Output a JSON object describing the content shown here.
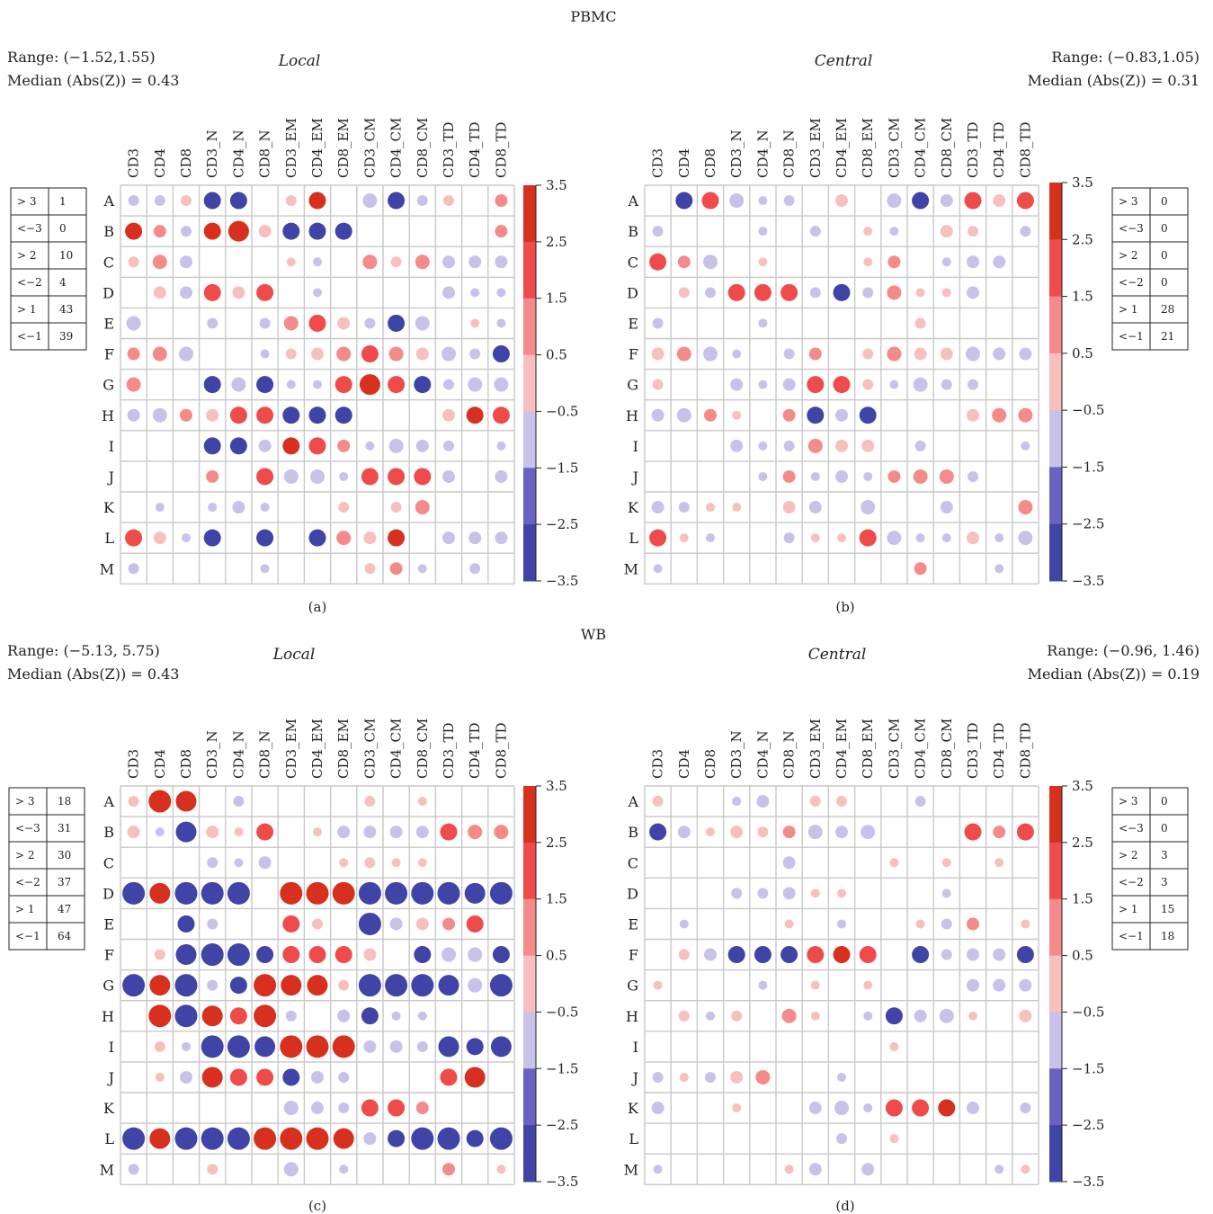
{
  "section_titles": {
    "top": "PBMC",
    "bottom": "WB"
  },
  "colorbar": {
    "ticks": [
      "3.5",
      "2.5",
      "1.5",
      "0.5",
      "−0.5",
      "−1.5",
      "−2.5",
      "−3.5"
    ],
    "tick_values": [
      3.5,
      2.5,
      1.5,
      0.5,
      -0.5,
      -1.5,
      -2.5,
      -3.5
    ],
    "bin_colors": [
      "#d7301f",
      "#ef4b4b",
      "#f48a8a",
      "#f8bfbf",
      "#ffffff",
      "#c6c2ea",
      "#6a62c0",
      "#3f44a6"
    ]
  },
  "colors": {
    "grid": "#c8c8c8",
    "pos_strong": "#d7301f",
    "neg_strong": "#3f44a6"
  },
  "legend_keys": [
    "> 3",
    "<−3",
    "> 2",
    "<−2",
    "> 1",
    "<−1"
  ],
  "chart_data": [
    {
      "type": "heatmap",
      "panel_label": "(a)",
      "title": "Local",
      "stats": {
        "range_text": "Range: (−1.52,1.55)",
        "median_text": "Median (Abs(Z)) = 0.43"
      },
      "counts": [
        "1",
        "0",
        "10",
        "4",
        "43",
        "39"
      ],
      "columns": [
        "CD3",
        "CD4",
        "CD8",
        "CD3_N",
        "CD4_N",
        "CD8_N",
        "CD3_EM",
        "CD4_EM",
        "CD8_EM",
        "CD3_CM",
        "CD4_CM",
        "CD8_CM",
        "CD3_TD",
        "CD4_TD",
        "CD8_TD"
      ],
      "rows": [
        "A",
        "B",
        "C",
        "D",
        "E",
        "F",
        "G",
        "H",
        "I",
        "J",
        "K",
        "L",
        "M"
      ],
      "values": [
        [
          -0.7,
          -0.7,
          0.7,
          -2.5,
          -2.5,
          0,
          0.7,
          2.5,
          0,
          -1.0,
          -2.5,
          -0.7,
          0.7,
          0,
          0.9
        ],
        [
          2.6,
          0.9,
          -0.7,
          2.6,
          3.3,
          0.8,
          -2.5,
          -2.5,
          -2.5,
          0,
          0,
          0,
          0,
          0,
          0.9
        ],
        [
          0.7,
          1.0,
          -0.9,
          0,
          0,
          0,
          0.6,
          -0.6,
          0,
          1.0,
          0.7,
          1.0,
          -0.9,
          -0.9,
          -0.8
        ],
        [
          0,
          0.8,
          -0.9,
          2.3,
          0.8,
          2.3,
          0,
          -0.6,
          0,
          0,
          0,
          0,
          -0.8,
          -0.6,
          -0.6
        ],
        [
          -1.0,
          0,
          0,
          -0.7,
          0,
          -0.7,
          1.0,
          2.3,
          0.8,
          -0.7,
          -2.5,
          -1.0,
          0,
          0.6,
          -0.6
        ],
        [
          0.9,
          1.0,
          -1.0,
          0,
          0,
          -0.6,
          0.7,
          0.8,
          1.0,
          2.3,
          1.0,
          0.8,
          -1.0,
          -0.7,
          -2.5
        ],
        [
          1.0,
          0,
          0,
          -2.5,
          -1.0,
          -2.5,
          -0.6,
          -0.6,
          2.3,
          3.3,
          2.3,
          -2.5,
          -0.7,
          -1.0,
          -1.0
        ],
        [
          -0.9,
          -1.0,
          0.9,
          0.8,
          2.3,
          2.3,
          -2.5,
          -2.5,
          -2.5,
          0,
          0,
          0,
          0.8,
          2.6,
          2.3
        ],
        [
          0,
          0,
          0,
          -2.5,
          -2.5,
          -0.9,
          2.6,
          2.3,
          0.9,
          -0.6,
          -1.0,
          -0.8,
          -0.7,
          0,
          -0.6
        ],
        [
          0,
          0,
          0,
          0.9,
          0,
          2.3,
          -1.0,
          -1.0,
          -0.6,
          2.3,
          2.3,
          2.3,
          -0.9,
          0,
          -0.9
        ],
        [
          0,
          -0.6,
          0,
          -0.6,
          -0.8,
          -0.6,
          0,
          0,
          0.7,
          0,
          0.7,
          1.0,
          0,
          0,
          0
        ],
        [
          2.3,
          0.8,
          -0.6,
          -2.5,
          0,
          -2.5,
          0,
          -2.8,
          1.0,
          0.8,
          2.5,
          0,
          -0.8,
          -0.9,
          -0.9
        ],
        [
          -0.7,
          0,
          0,
          0,
          0,
          -0.6,
          0,
          0,
          0,
          0.7,
          0.9,
          -0.6,
          0,
          -0.7,
          0
        ]
      ]
    },
    {
      "type": "heatmap",
      "panel_label": "(b)",
      "title": "Central",
      "stats": {
        "range_text": "Range: (−0.83,1.05)",
        "median_text": "Median (Abs(Z)) = 0.31"
      },
      "counts": [
        "0",
        "0",
        "0",
        "0",
        "28",
        "21"
      ],
      "columns": [
        "CD3",
        "CD4",
        "CD8",
        "CD3_N",
        "CD4_N",
        "CD8_N",
        "CD3_EM",
        "CD4_EM",
        "CD8_EM",
        "CD3_CM",
        "CD4_CM",
        "CD8_CM",
        "CD3_TD",
        "CD4_TD",
        "CD8_TD"
      ],
      "rows": [
        "A",
        "B",
        "C",
        "D",
        "E",
        "F",
        "G",
        "H",
        "I",
        "J",
        "K",
        "L",
        "M"
      ],
      "values": [
        [
          0,
          -2.5,
          2.3,
          -1.0,
          -0.6,
          -0.7,
          0,
          0.8,
          0,
          -1.0,
          -2.6,
          -0.8,
          2.3,
          0.8,
          2.3
        ],
        [
          -0.7,
          0,
          0,
          0,
          -0.6,
          0,
          -0.7,
          0,
          0.6,
          -0.6,
          0,
          0.8,
          0.7,
          0,
          -0.7
        ],
        [
          2.3,
          0.9,
          -1.0,
          0,
          0.6,
          0,
          0,
          0,
          0.6,
          0.9,
          0,
          -0.6,
          -0.9,
          -0.9,
          0
        ],
        [
          0,
          0.7,
          -0.7,
          2.3,
          2.3,
          2.4,
          -0.7,
          -2.5,
          -0.7,
          1.0,
          0.6,
          0.6,
          -0.8,
          0,
          0
        ],
        [
          -0.7,
          0,
          0,
          0,
          -0.6,
          0,
          0,
          0,
          0,
          0,
          0.7,
          0,
          0,
          0,
          0
        ],
        [
          0.8,
          1.0,
          -1.0,
          -0.6,
          0,
          -0.7,
          0.9,
          0,
          0.7,
          1.0,
          0.8,
          0.8,
          -1.0,
          -0.9,
          -0.8
        ],
        [
          0.7,
          0,
          0,
          -0.8,
          -0.6,
          -0.9,
          2.3,
          2.3,
          0.7,
          -0.6,
          -1.0,
          -0.7,
          -0.7,
          0,
          0
        ],
        [
          -0.9,
          -1.0,
          0.9,
          0.6,
          0,
          0.9,
          -2.5,
          -0.8,
          -2.5,
          0,
          0,
          0,
          0.8,
          1.0,
          1.0
        ],
        [
          0,
          0,
          0,
          -0.8,
          -0.6,
          -0.7,
          1.0,
          0.8,
          0.8,
          0,
          -0.7,
          0,
          0,
          0,
          -0.6
        ],
        [
          0,
          0,
          0,
          0,
          -0.6,
          0.9,
          -0.6,
          -0.8,
          -0.6,
          0.9,
          1.0,
          1.0,
          -0.7,
          0,
          0
        ],
        [
          -0.9,
          -0.7,
          0.6,
          0.6,
          0,
          0.8,
          -0.9,
          0,
          -1.0,
          0,
          0,
          -0.8,
          0,
          0,
          1.0
        ],
        [
          2.3,
          0.6,
          -0.6,
          0,
          0,
          -0.7,
          0.6,
          0.6,
          2.3,
          -1.0,
          -0.6,
          -0.6,
          0.8,
          -0.6,
          -1.0
        ],
        [
          -0.6,
          0,
          0,
          0,
          0,
          0,
          0,
          0,
          0,
          0,
          0.9,
          0,
          0,
          -0.6,
          0
        ]
      ]
    },
    {
      "type": "heatmap",
      "panel_label": "(c)",
      "title": "Local",
      "stats": {
        "range_text": "Range: (−5.13, 5.75)",
        "median_text": "Median  (Abs(Z)) = 0.43"
      },
      "counts": [
        "18",
        "31",
        "30",
        "37",
        "47",
        "64"
      ],
      "columns": [
        "CD3",
        "CD4",
        "CD8",
        "CD3_N",
        "CD4_N",
        "CD8_N",
        "CD3_EM",
        "CD4_EM",
        "CD8_EM",
        "CD3_CM",
        "CD4_CM",
        "CD8_CM",
        "CD3_TD",
        "CD4_TD",
        "CD8_TD"
      ],
      "rows": [
        "A",
        "B",
        "C",
        "D",
        "E",
        "F",
        "G",
        "H",
        "I",
        "J",
        "K",
        "L",
        "M"
      ],
      "values": [
        [
          0.7,
          3.5,
          3.3,
          0,
          -0.7,
          0,
          0,
          0,
          0,
          0.7,
          0,
          0.6,
          0,
          0,
          0
        ],
        [
          0.8,
          -0.6,
          -3.3,
          0.8,
          0.6,
          2.3,
          0,
          0.6,
          -0.9,
          -0.9,
          -0.9,
          -0.9,
          2.3,
          1.0,
          1.0
        ],
        [
          0,
          0,
          0,
          -0.7,
          -0.6,
          -0.9,
          0,
          0,
          0.6,
          0.7,
          0.6,
          0.6,
          0,
          0,
          0
        ],
        [
          -3.5,
          3.3,
          -3.5,
          -3.5,
          -3.5,
          0,
          3.5,
          3.5,
          3.5,
          -3.5,
          -3.5,
          -3.5,
          -3.5,
          -3.0,
          -3.5
        ],
        [
          0,
          0,
          -2.5,
          -0.7,
          0,
          0,
          2.3,
          0.7,
          0,
          -3.5,
          -0.9,
          0.8,
          0.9,
          2.3,
          0
        ],
        [
          0,
          0.7,
          -3.3,
          -3.5,
          -3.5,
          -2.5,
          2.3,
          2.3,
          2.3,
          0.8,
          0,
          -2.5,
          -1.0,
          -1.0,
          -2.5
        ],
        [
          -3.5,
          3.3,
          -3.5,
          -0.7,
          -2.5,
          3.5,
          3.3,
          3.3,
          0.7,
          -3.5,
          -3.5,
          -3.5,
          -3.3,
          -1.0,
          -3.5
        ],
        [
          0,
          3.5,
          -3.5,
          3.3,
          2.3,
          3.5,
          -0.7,
          0,
          -0.9,
          -2.5,
          -0.6,
          -0.6,
          0,
          0,
          0
        ],
        [
          0,
          0.7,
          -0.6,
          -3.5,
          -3.5,
          -3.3,
          3.5,
          3.5,
          3.5,
          -0.9,
          -0.9,
          -0.7,
          -3.3,
          -2.5,
          -3.0
        ],
        [
          0,
          0.6,
          -0.8,
          3.0,
          2.3,
          2.3,
          -2.5,
          -0.9,
          -0.7,
          0,
          0,
          0,
          2.3,
          3.3,
          0
        ],
        [
          0,
          0,
          0,
          0,
          0,
          0,
          -1.0,
          -0.8,
          -0.7,
          2.3,
          2.3,
          0.9,
          0,
          0,
          0
        ],
        [
          -3.5,
          3.3,
          -3.5,
          -3.5,
          -3.5,
          3.5,
          3.5,
          3.5,
          3.3,
          -0.9,
          -2.5,
          -3.5,
          -3.5,
          -2.5,
          -3.5
        ],
        [
          -0.7,
          0,
          0,
          0.7,
          0,
          0,
          -1.0,
          0,
          -0.6,
          0,
          0,
          0,
          0.9,
          0,
          0.6
        ]
      ]
    },
    {
      "type": "heatmap",
      "panel_label": "(d)",
      "title": "Central",
      "stats": {
        "range_text": "Range: (−0.96, 1.46)",
        "median_text": "Median  (Abs(Z)) = 0.19"
      },
      "counts": [
        "0",
        "0",
        "3",
        "3",
        "15",
        "18"
      ],
      "columns": [
        "CD3",
        "CD4",
        "CD8",
        "CD3_N",
        "CD4_N",
        "CD8_N",
        "CD3_EM",
        "CD4_EM",
        "CD8_EM",
        "CD3_CM",
        "CD4_CM",
        "CD8_CM",
        "CD3_TD",
        "CD4_TD",
        "CD8_TD"
      ],
      "rows": [
        "A",
        "B",
        "C",
        "D",
        "E",
        "F",
        "G",
        "H",
        "I",
        "J",
        "K",
        "L",
        "M"
      ],
      "values": [
        [
          0.7,
          0,
          0,
          -0.6,
          -0.8,
          0,
          0.7,
          0.7,
          0,
          0,
          -0.7,
          0,
          0,
          0,
          0
        ],
        [
          -2.5,
          -0.8,
          0.6,
          0.8,
          0.7,
          0.9,
          -1.0,
          -0.9,
          -1.0,
          0,
          0,
          0,
          2.3,
          0.9,
          2.3
        ],
        [
          0,
          0,
          0,
          0,
          0,
          -0.8,
          0,
          0,
          0,
          0.6,
          0,
          0.6,
          0,
          0.6,
          0
        ],
        [
          0,
          0,
          0,
          -0.7,
          -0.7,
          -0.8,
          0.6,
          0.6,
          0,
          0,
          0,
          -0.6,
          0,
          0,
          0
        ],
        [
          0,
          -0.6,
          0,
          0,
          0,
          0.6,
          0,
          -0.6,
          0,
          0,
          0.6,
          -0.7,
          0.9,
          0,
          0.6
        ],
        [
          0,
          0.7,
          -0.8,
          -2.5,
          -2.5,
          -2.5,
          2.3,
          2.5,
          2.3,
          0,
          -2.5,
          -0.7,
          -0.9,
          -0.9,
          -2.5
        ],
        [
          0.6,
          0,
          0,
          0,
          -0.6,
          0,
          0.6,
          0,
          0.6,
          0,
          0,
          0,
          -0.9,
          -0.8,
          -0.9
        ],
        [
          0,
          0.7,
          -0.6,
          0.7,
          0,
          1.0,
          0.6,
          0,
          -0.6,
          -2.5,
          -0.8,
          -1.0,
          0.6,
          0,
          0.8
        ],
        [
          0,
          0,
          0,
          0,
          0,
          0,
          0,
          0,
          0,
          0.6,
          0,
          0,
          0,
          0,
          0
        ],
        [
          -0.7,
          0.6,
          -0.7,
          0.8,
          1.0,
          0,
          0,
          -0.6,
          0,
          0,
          0,
          0,
          0,
          0,
          0
        ],
        [
          -0.8,
          0,
          0,
          0.6,
          0,
          0,
          -0.8,
          -1.0,
          -0.6,
          2.3,
          2.3,
          2.5,
          -0.9,
          0,
          -0.7
        ],
        [
          0,
          0,
          0,
          0,
          0,
          0,
          0,
          -0.7,
          0,
          0.6,
          0,
          0,
          0,
          0,
          0
        ],
        [
          -0.6,
          0,
          0,
          0,
          0,
          0.6,
          -0.9,
          0,
          -0.8,
          0,
          0,
          0,
          0,
          -0.6,
          0.6
        ]
      ]
    }
  ]
}
